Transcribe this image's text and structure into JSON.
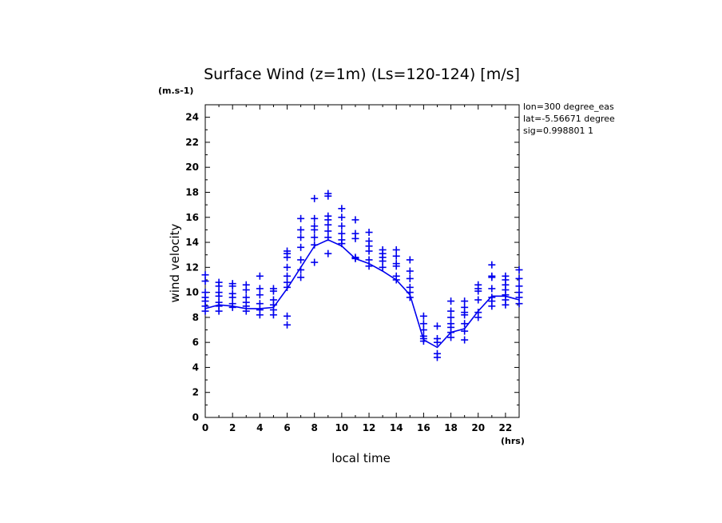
{
  "colors": {
    "series": "#0000ee",
    "axis": "#000000"
  },
  "info_lines": [
    "lon=300 degree_eas",
    "lat=-5.56671 degree",
    "sig=0.998801 1"
  ],
  "chart_data": {
    "type": "scatter",
    "title": "Surface Wind (z=1m) (Ls=120-124) [m/s]",
    "ylabel": "wind velocity",
    "xlabel": "local time",
    "y_unit": "(m.s-1)",
    "x_unit": "(hrs)",
    "xlim": [
      0,
      23
    ],
    "ylim": [
      0,
      25
    ],
    "x_ticks": [
      0,
      2,
      4,
      6,
      8,
      10,
      12,
      14,
      16,
      18,
      20,
      22
    ],
    "y_ticks": [
      0,
      2,
      4,
      6,
      8,
      10,
      12,
      14,
      16,
      18,
      20,
      22,
      24
    ],
    "grid": false,
    "series": [
      {
        "type": "line",
        "x": [
          0,
          1,
          2,
          3,
          4,
          5,
          6,
          7,
          8,
          9,
          10,
          11,
          12,
          13,
          14,
          15,
          16,
          17,
          18,
          19,
          20,
          21,
          22,
          23
        ],
        "y": [
          8.7,
          9.0,
          8.9,
          8.7,
          8.7,
          8.8,
          10.3,
          12.0,
          13.7,
          14.2,
          13.7,
          12.7,
          12.3,
          11.7,
          11.0,
          9.8,
          6.2,
          5.6,
          6.8,
          7.1,
          8.5,
          9.7,
          9.7,
          9.4
        ]
      },
      {
        "type": "scatter",
        "marker": "+",
        "points": [
          [
            0,
            11.4
          ],
          [
            0,
            10.9
          ],
          [
            0,
            10.0
          ],
          [
            0,
            9.6
          ],
          [
            0,
            9.3
          ],
          [
            0,
            8.9
          ],
          [
            0,
            8.5
          ],
          [
            1,
            10.8
          ],
          [
            1,
            10.5
          ],
          [
            1,
            10.0
          ],
          [
            1,
            9.7
          ],
          [
            1,
            9.2
          ],
          [
            1,
            8.9
          ],
          [
            1,
            8.5
          ],
          [
            2,
            10.7
          ],
          [
            2,
            10.5
          ],
          [
            2,
            9.9
          ],
          [
            2,
            9.6
          ],
          [
            2,
            9.1
          ],
          [
            2,
            8.8
          ],
          [
            3,
            10.6
          ],
          [
            3,
            10.2
          ],
          [
            3,
            9.6
          ],
          [
            3,
            9.2
          ],
          [
            3,
            8.9
          ],
          [
            3,
            8.5
          ],
          [
            4,
            11.3
          ],
          [
            4,
            10.3
          ],
          [
            4,
            9.8
          ],
          [
            4,
            9.1
          ],
          [
            4,
            8.6
          ],
          [
            4,
            8.2
          ],
          [
            5,
            10.3
          ],
          [
            5,
            10.1
          ],
          [
            5,
            9.4
          ],
          [
            5,
            9.0
          ],
          [
            5,
            8.6
          ],
          [
            5,
            8.2
          ],
          [
            6,
            13.3
          ],
          [
            6,
            13.1
          ],
          [
            6,
            12.8
          ],
          [
            6,
            12.0
          ],
          [
            6,
            11.3
          ],
          [
            6,
            10.8
          ],
          [
            6,
            10.4
          ],
          [
            6,
            8.1
          ],
          [
            6,
            7.4
          ],
          [
            7,
            15.9
          ],
          [
            7,
            15.0
          ],
          [
            7,
            14.4
          ],
          [
            7,
            13.6
          ],
          [
            7,
            12.6
          ],
          [
            7,
            11.8
          ],
          [
            7,
            11.2
          ],
          [
            8,
            17.5
          ],
          [
            8,
            15.9
          ],
          [
            8,
            15.3
          ],
          [
            8,
            15.0
          ],
          [
            8,
            14.4
          ],
          [
            8,
            13.8
          ],
          [
            8,
            12.4
          ],
          [
            9,
            17.9
          ],
          [
            9,
            17.7
          ],
          [
            9,
            16.1
          ],
          [
            9,
            15.8
          ],
          [
            9,
            15.4
          ],
          [
            9,
            14.9
          ],
          [
            9,
            14.4
          ],
          [
            9,
            13.1
          ],
          [
            10,
            16.7
          ],
          [
            10,
            16.0
          ],
          [
            10,
            15.3
          ],
          [
            10,
            14.7
          ],
          [
            10,
            14.2
          ],
          [
            10,
            13.9
          ],
          [
            11,
            15.8
          ],
          [
            11,
            14.7
          ],
          [
            11,
            14.3
          ],
          [
            11,
            12.8
          ],
          [
            11,
            12.7
          ],
          [
            12,
            14.8
          ],
          [
            12,
            14.1
          ],
          [
            12,
            13.7
          ],
          [
            12,
            13.3
          ],
          [
            12,
            12.6
          ],
          [
            12,
            12.1
          ],
          [
            13,
            13.4
          ],
          [
            13,
            13.1
          ],
          [
            13,
            12.8
          ],
          [
            13,
            12.5
          ],
          [
            13,
            12.0
          ],
          [
            14,
            13.4
          ],
          [
            14,
            12.9
          ],
          [
            14,
            12.3
          ],
          [
            14,
            12.1
          ],
          [
            14,
            11.3
          ],
          [
            14,
            11.0
          ],
          [
            15,
            12.6
          ],
          [
            15,
            11.7
          ],
          [
            15,
            11.1
          ],
          [
            15,
            10.4
          ],
          [
            15,
            10.0
          ],
          [
            15,
            9.6
          ],
          [
            16,
            8.1
          ],
          [
            16,
            7.5
          ],
          [
            16,
            7.0
          ],
          [
            16,
            6.5
          ],
          [
            16,
            6.3
          ],
          [
            16,
            6.1
          ],
          [
            17,
            7.3
          ],
          [
            17,
            6.3
          ],
          [
            17,
            6.0
          ],
          [
            17,
            5.1
          ],
          [
            17,
            4.8
          ],
          [
            18,
            9.3
          ],
          [
            18,
            8.5
          ],
          [
            18,
            8.0
          ],
          [
            18,
            7.5
          ],
          [
            18,
            7.2
          ],
          [
            18,
            6.8
          ],
          [
            18,
            6.4
          ],
          [
            19,
            9.3
          ],
          [
            19,
            8.8
          ],
          [
            19,
            8.4
          ],
          [
            19,
            8.2
          ],
          [
            19,
            7.5
          ],
          [
            19,
            6.9
          ],
          [
            19,
            6.2
          ],
          [
            20,
            10.6
          ],
          [
            20,
            10.3
          ],
          [
            20,
            10.1
          ],
          [
            20,
            9.4
          ],
          [
            20,
            8.4
          ],
          [
            20,
            8.0
          ],
          [
            21,
            12.2
          ],
          [
            21,
            11.3
          ],
          [
            21,
            11.2
          ],
          [
            21,
            10.3
          ],
          [
            21,
            9.6
          ],
          [
            21,
            9.3
          ],
          [
            21,
            8.9
          ],
          [
            22,
            11.3
          ],
          [
            22,
            11.0
          ],
          [
            22,
            10.6
          ],
          [
            22,
            10.2
          ],
          [
            22,
            9.8
          ],
          [
            22,
            9.4
          ],
          [
            22,
            9.0
          ],
          [
            23,
            11.8
          ],
          [
            23,
            11.1
          ],
          [
            23,
            10.5
          ],
          [
            23,
            10.0
          ],
          [
            23,
            9.6
          ],
          [
            23,
            9.1
          ]
        ]
      }
    ]
  }
}
